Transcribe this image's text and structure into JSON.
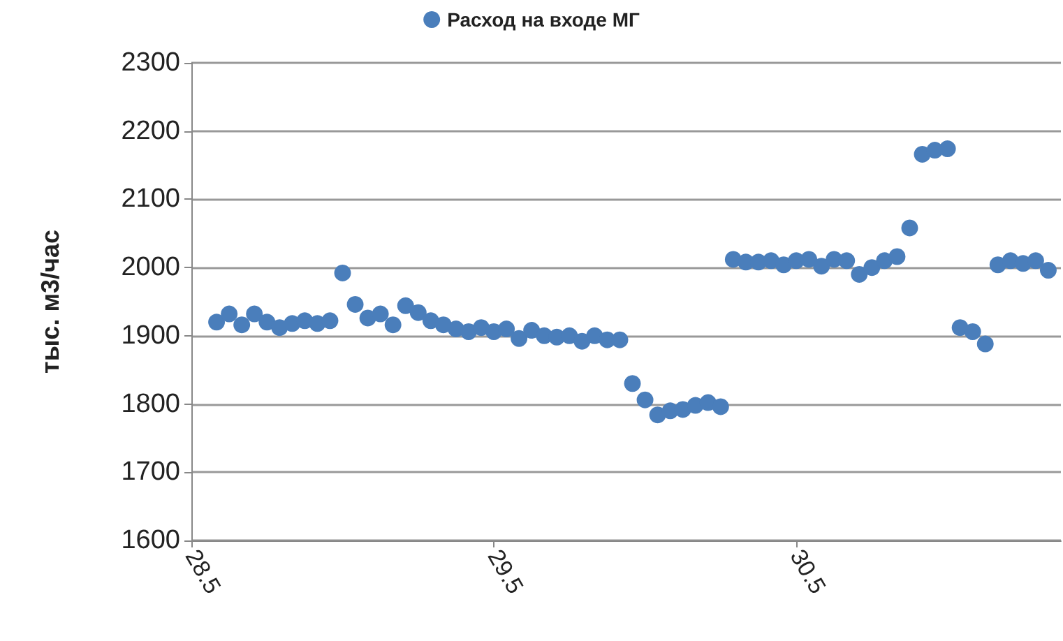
{
  "chart_data": {
    "type": "scatter",
    "ylabel": "тыс. м3/час",
    "legend": "top",
    "grid": "y",
    "marker": "circle",
    "categories": [
      "28.5",
      null,
      null,
      null,
      null,
      null,
      null,
      null,
      null,
      null,
      null,
      null,
      null,
      null,
      null,
      null,
      null,
      null,
      null,
      null,
      null,
      null,
      null,
      null,
      "29.5",
      null,
      null,
      null,
      null,
      null,
      null,
      null,
      null,
      null,
      null,
      null,
      null,
      null,
      null,
      null,
      null,
      null,
      null,
      null,
      null,
      null,
      null,
      null,
      "30.5",
      null,
      null,
      null,
      null,
      null,
      null,
      null,
      null,
      null,
      null,
      null,
      null,
      null,
      null,
      null,
      null,
      null,
      null,
      null,
      null,
      null
    ],
    "ylim": [
      1600,
      2300
    ],
    "yticks": [
      1600,
      1700,
      1800,
      1900,
      2000,
      2100,
      2200,
      2300
    ],
    "series": [
      {
        "name": "Расход на входе МГ",
        "color": "#4a7ebb",
        "values": [
          null,
          null,
          1920,
          1932,
          1916,
          1932,
          1920,
          1912,
          1918,
          1922,
          1918,
          1922,
          1992,
          1946,
          1926,
          1932,
          1916,
          1944,
          1934,
          1922,
          1916,
          1910,
          1906,
          1912,
          1906,
          1910,
          1896,
          1908,
          1900,
          1898,
          1900,
          1892,
          1900,
          1894,
          1894,
          1830,
          1806,
          1784,
          1790,
          1792,
          1798,
          1802,
          1796,
          2012,
          2008,
          2008,
          2010,
          2004,
          2010,
          2012,
          2002,
          2012,
          2010,
          1990,
          2000,
          2010,
          2016,
          2058,
          2166,
          2172,
          2174,
          1912,
          1906,
          1888,
          2004,
          2010,
          2006,
          2010,
          1996,
          null
        ]
      }
    ]
  }
}
